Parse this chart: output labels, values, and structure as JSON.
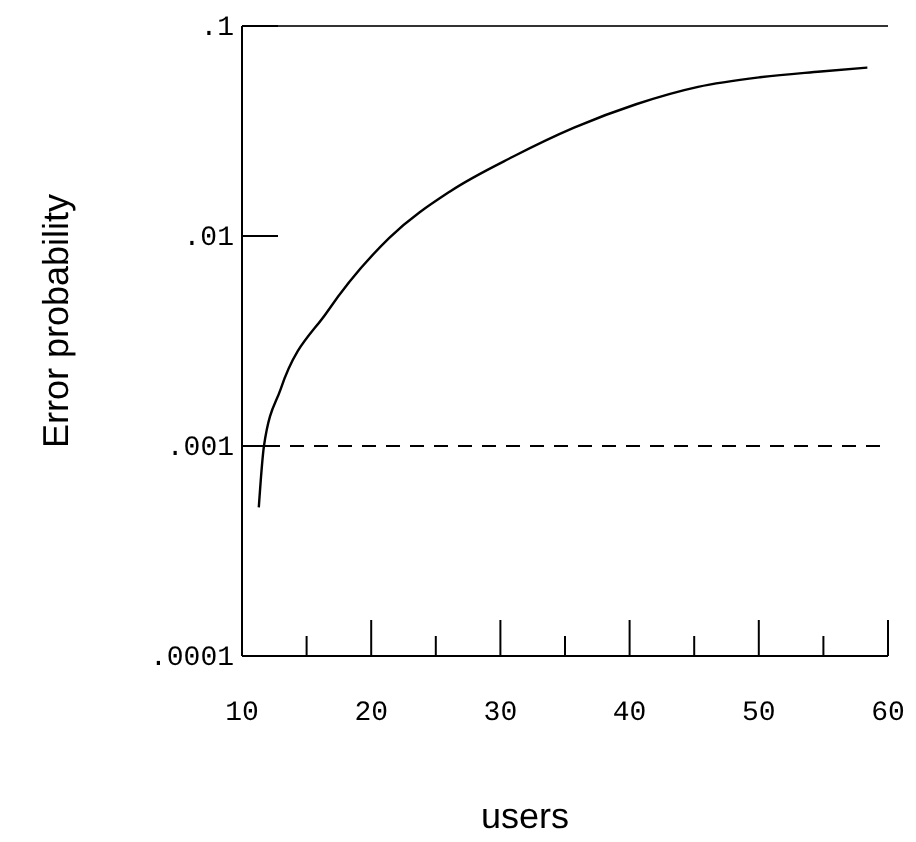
{
  "chart_data": {
    "type": "line",
    "xlabel": "users",
    "ylabel": "Error probability",
    "log": "y",
    "grid": false,
    "marker": "none",
    "line_style": "solid",
    "xlim": [
      10,
      60
    ],
    "xticks": [
      10,
      {
        "value": 15,
        "label": null
      },
      20,
      {
        "value": 25,
        "label": null
      },
      30,
      {
        "value": 35,
        "label": null
      },
      40,
      {
        "value": 45,
        "label": null
      },
      50,
      {
        "value": 55,
        "label": null
      },
      60
    ],
    "ylim": [
      0.0001,
      0.1
    ],
    "yticks": [
      {
        "value": 0.0001,
        "label": ".0001"
      },
      {
        "value": 0.001,
        "label": ".001"
      },
      {
        "value": 0.01,
        "label": ".01"
      },
      {
        "value": 0.1,
        "label": ".1"
      }
    ],
    "series": [
      {
        "color": "#000000",
        "x": [
          11.3,
          11.7,
          13.0,
          16.6,
          21.4,
          26.1,
          31.0,
          35.7,
          40.5,
          45.3,
          50.1,
          54.8,
          58.4
        ],
        "values": [
          0.00051,
          0.001,
          0.00187,
          0.00436,
          0.0098,
          0.0163,
          0.0239,
          0.0328,
          0.0424,
          0.0513,
          0.057,
          0.0607,
          0.0634
        ]
      }
    ],
    "ref_lines": [
      {
        "axis": "y",
        "value": 0.001,
        "color": "#000000",
        "line_style": "dashed"
      }
    ]
  }
}
